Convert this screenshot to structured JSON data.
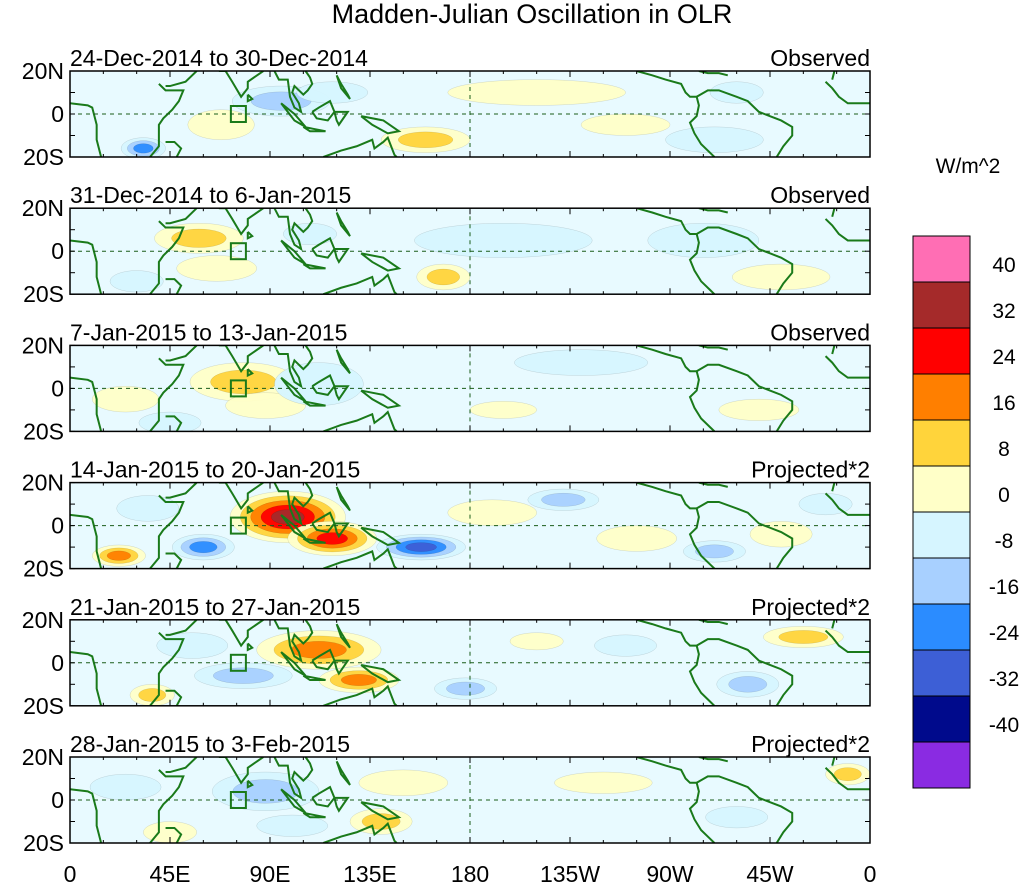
{
  "chart_data": {
    "type": "heatmap",
    "title": "Madden-Julian Oscillation in OLR",
    "units": "W/m^2",
    "x_ticks": [
      "0",
      "45E",
      "90E",
      "135E",
      "180",
      "135W",
      "90W",
      "45W",
      "0"
    ],
    "x_tick_lon": [
      0,
      45,
      90,
      135,
      180,
      225,
      270,
      315,
      360
    ],
    "y_ticks": [
      "20N",
      "0",
      "20S"
    ],
    "y_tick_lat": [
      20,
      0,
      -20
    ],
    "xlim": [
      0,
      360
    ],
    "ylim": [
      -20,
      20
    ],
    "reference_lines": {
      "equator_lat": 0,
      "dateline_lon": 180
    },
    "colorbar": {
      "labels": [
        "40",
        "32",
        "24",
        "16",
        "8",
        "0",
        "-8",
        "-16",
        "-24",
        "-32",
        "-40"
      ],
      "colors": [
        "#ff6eb4",
        "#a52a2a",
        "#ff0000",
        "#ff7f00",
        "#ffd43b",
        "#ffffc8",
        "#d6f5ff",
        "#a8d0ff",
        "#2b8cff",
        "#3d5fd6",
        "#000a8c",
        "#8a2be2"
      ]
    },
    "panels": [
      {
        "date_range": "24-Dec-2014 to 30-Dec-2014",
        "label": "Observed",
        "anomalies": [
          {
            "lon": 95,
            "lat": 6,
            "rlon": 22,
            "rlat": 7,
            "value": -18
          },
          {
            "lon": 118,
            "lat": 10,
            "rlon": 16,
            "rlat": 5,
            "value": -12
          },
          {
            "lon": 33,
            "lat": -16,
            "rlon": 10,
            "rlat": 5,
            "value": -26
          },
          {
            "lon": 160,
            "lat": -12,
            "rlon": 20,
            "rlat": 6,
            "value": 16
          },
          {
            "lon": 68,
            "lat": -5,
            "rlon": 15,
            "rlat": 7,
            "value": 8
          },
          {
            "lon": 210,
            "lat": 10,
            "rlon": 40,
            "rlat": 6,
            "value": 4
          },
          {
            "lon": 290,
            "lat": -12,
            "rlon": 22,
            "rlat": 6,
            "value": -9
          },
          {
            "lon": 300,
            "lat": 10,
            "rlon": 12,
            "rlat": 5,
            "value": -8
          },
          {
            "lon": 250,
            "lat": -5,
            "rlon": 20,
            "rlat": 5,
            "value": 5
          }
        ]
      },
      {
        "date_range": "31-Dec-2014 to 6-Jan-2015",
        "label": "Observed",
        "anomalies": [
          {
            "lon": 58,
            "lat": 6,
            "rlon": 20,
            "rlat": 7,
            "value": 16
          },
          {
            "lon": 66,
            "lat": -8,
            "rlon": 18,
            "rlat": 6,
            "value": 10
          },
          {
            "lon": 108,
            "lat": 8,
            "rlon": 12,
            "rlat": 5,
            "value": -14
          },
          {
            "lon": 168,
            "lat": -12,
            "rlon": 12,
            "rlat": 6,
            "value": 17
          },
          {
            "lon": 320,
            "lat": -12,
            "rlon": 22,
            "rlat": 6,
            "value": 10
          },
          {
            "lon": 30,
            "lat": -14,
            "rlon": 12,
            "rlat": 5,
            "value": -9
          },
          {
            "lon": 195,
            "lat": 5,
            "rlon": 40,
            "rlat": 8,
            "value": -4
          },
          {
            "lon": 285,
            "lat": 5,
            "rlon": 25,
            "rlat": 8,
            "value": -6
          }
        ]
      },
      {
        "date_range": "7-Jan-2015 to 13-Jan-2015",
        "label": "Observed",
        "anomalies": [
          {
            "lon": 78,
            "lat": 3,
            "rlon": 24,
            "rlat": 9,
            "value": 20
          },
          {
            "lon": 88,
            "lat": -8,
            "rlon": 18,
            "rlat": 6,
            "value": 12
          },
          {
            "lon": 112,
            "lat": 2,
            "rlon": 20,
            "rlat": 10,
            "value": -8
          },
          {
            "lon": 45,
            "lat": -16,
            "rlon": 14,
            "rlat": 5,
            "value": -10
          },
          {
            "lon": 310,
            "lat": -10,
            "rlon": 18,
            "rlat": 5,
            "value": 9
          },
          {
            "lon": 195,
            "lat": -10,
            "rlon": 15,
            "rlat": 4,
            "value": 8
          },
          {
            "lon": 230,
            "lat": 12,
            "rlon": 30,
            "rlat": 6,
            "value": -5
          },
          {
            "lon": 25,
            "lat": -5,
            "rlon": 15,
            "rlat": 6,
            "value": 5
          }
        ]
      },
      {
        "date_range": "14-Jan-2015 to 20-Jan-2015",
        "label": "Projected*2",
        "anomalies": [
          {
            "lon": 98,
            "lat": 4,
            "rlon": 26,
            "rlat": 12,
            "value": 40
          },
          {
            "lon": 118,
            "lat": -6,
            "rlon": 20,
            "rlat": 8,
            "value": 34
          },
          {
            "lon": 158,
            "lat": -10,
            "rlon": 20,
            "rlat": 6,
            "value": -34
          },
          {
            "lon": 60,
            "lat": -10,
            "rlon": 14,
            "rlat": 6,
            "value": -28
          },
          {
            "lon": 22,
            "lat": -14,
            "rlon": 12,
            "rlat": 5,
            "value": 26
          },
          {
            "lon": 222,
            "lat": 12,
            "rlon": 16,
            "rlat": 5,
            "value": -20
          },
          {
            "lon": 290,
            "lat": -12,
            "rlon": 14,
            "rlat": 5,
            "value": -18
          },
          {
            "lon": 340,
            "lat": 10,
            "rlon": 12,
            "rlat": 5,
            "value": -12
          },
          {
            "lon": 190,
            "lat": 6,
            "rlon": 20,
            "rlat": 6,
            "value": 10
          },
          {
            "lon": 255,
            "lat": -6,
            "rlon": 18,
            "rlat": 6,
            "value": 12
          },
          {
            "lon": 35,
            "lat": 8,
            "rlon": 14,
            "rlat": 6,
            "value": -8
          },
          {
            "lon": 320,
            "lat": -4,
            "rlon": 14,
            "rlat": 6,
            "value": 8
          }
        ]
      },
      {
        "date_range": "21-Jan-2015 to 27-Jan-2015",
        "label": "Projected*2",
        "anomalies": [
          {
            "lon": 112,
            "lat": 6,
            "rlon": 28,
            "rlat": 9,
            "value": 26
          },
          {
            "lon": 130,
            "lat": -8,
            "rlon": 18,
            "rlat": 6,
            "value": 28
          },
          {
            "lon": 78,
            "lat": -6,
            "rlon": 22,
            "rlat": 6,
            "value": -22
          },
          {
            "lon": 55,
            "lat": 8,
            "rlon": 16,
            "rlat": 6,
            "value": -12
          },
          {
            "lon": 178,
            "lat": -12,
            "rlon": 14,
            "rlat": 5,
            "value": -22
          },
          {
            "lon": 330,
            "lat": 12,
            "rlon": 18,
            "rlat": 5,
            "value": 16
          },
          {
            "lon": 305,
            "lat": -10,
            "rlon": 14,
            "rlat": 6,
            "value": -16
          },
          {
            "lon": 37,
            "lat": -15,
            "rlon": 10,
            "rlat": 5,
            "value": 18
          },
          {
            "lon": 210,
            "lat": 10,
            "rlon": 12,
            "rlat": 4,
            "value": 9
          },
          {
            "lon": 250,
            "lat": 8,
            "rlon": 14,
            "rlat": 5,
            "value": -10
          }
        ]
      },
      {
        "date_range": "28-Jan-2015 to 3-Feb-2015",
        "label": "Projected*2",
        "anomalies": [
          {
            "lon": 88,
            "lat": 4,
            "rlon": 24,
            "rlat": 9,
            "value": -18
          },
          {
            "lon": 140,
            "lat": -10,
            "rlon": 14,
            "rlat": 6,
            "value": 22
          },
          {
            "lon": 150,
            "lat": 8,
            "rlon": 20,
            "rlat": 6,
            "value": 10
          },
          {
            "lon": 45,
            "lat": -15,
            "rlon": 12,
            "rlat": 5,
            "value": 14
          },
          {
            "lon": 240,
            "lat": 8,
            "rlon": 22,
            "rlat": 5,
            "value": 9
          },
          {
            "lon": 300,
            "lat": -8,
            "rlon": 14,
            "rlat": 5,
            "value": -10
          },
          {
            "lon": 350,
            "lat": 12,
            "rlon": 10,
            "rlat": 5,
            "value": 16
          },
          {
            "lon": 100,
            "lat": -12,
            "rlon": 16,
            "rlat": 5,
            "value": -12
          },
          {
            "lon": 25,
            "lat": 6,
            "rlon": 16,
            "rlat": 6,
            "value": -6
          }
        ]
      }
    ]
  }
}
